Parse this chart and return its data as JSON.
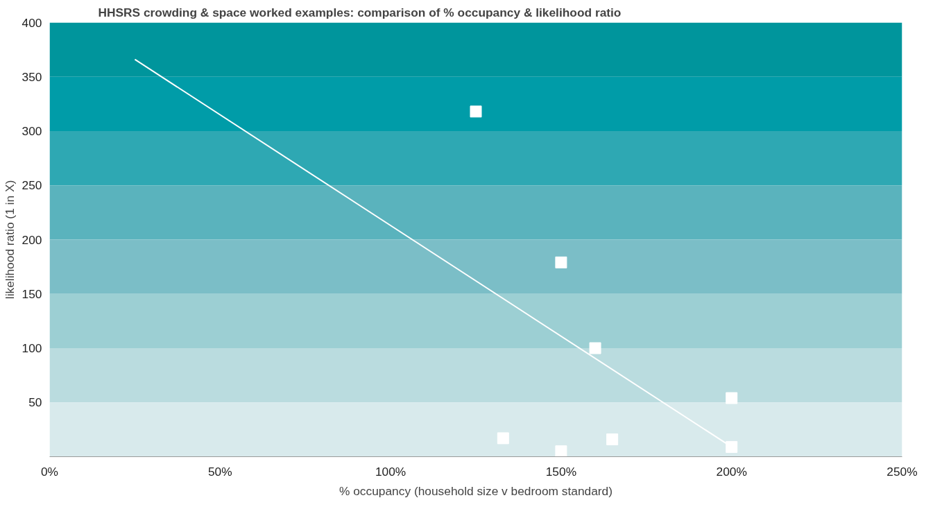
{
  "chart_data": {
    "type": "scatter",
    "title": "HHSRS crowding & space worked examples: comparison of % occupancy & likelihood ratio",
    "xlabel": "% occupancy (household size v bedroom standard)",
    "ylabel": "likelihood ratio (1 in X)",
    "series": [
      {
        "color": "#ffffff",
        "marker": "square",
        "x": [
          125,
          150,
          160,
          200,
          200,
          133,
          150,
          165
        ],
        "values": [
          318,
          179,
          100,
          54,
          9,
          17,
          5,
          16
        ]
      },
      {
        "type": "line",
        "color": "#ffffff",
        "line_style": "solid",
        "x": [
          25,
          200
        ],
        "values": [
          366,
          9
        ]
      }
    ],
    "bands": [
      {
        "axis": "y",
        "from": 350,
        "to": 400,
        "color": "#00959c"
      },
      {
        "axis": "y",
        "from": 300,
        "to": 350,
        "color": "#009ca8"
      },
      {
        "axis": "y",
        "from": 250,
        "to": 300,
        "color": "#2ea8b3"
      },
      {
        "axis": "y",
        "from": 200,
        "to": 250,
        "color": "#5ab3bd"
      },
      {
        "axis": "y",
        "from": 150,
        "to": 200,
        "color": "#7bbec7"
      },
      {
        "axis": "y",
        "from": 100,
        "to": 150,
        "color": "#9ccfd3"
      },
      {
        "axis": "y",
        "from": 50,
        "to": 100,
        "color": "#badcdf"
      },
      {
        "axis": "y",
        "from": 0,
        "to": 50,
        "color": "#d8eaec"
      }
    ],
    "xlim": [
      0,
      250
    ],
    "xticks": [
      {
        "value": 0,
        "label": "0%"
      },
      {
        "value": 50,
        "label": "50%"
      },
      {
        "value": 100,
        "label": "100%"
      },
      {
        "value": 150,
        "label": "150%"
      },
      {
        "value": 200,
        "label": "200%"
      },
      {
        "value": 250,
        "label": "250%"
      }
    ],
    "ylim": [
      0,
      400
    ],
    "yticks": [
      50,
      100,
      150,
      200,
      250,
      300,
      350,
      400
    ],
    "grid": false
  }
}
